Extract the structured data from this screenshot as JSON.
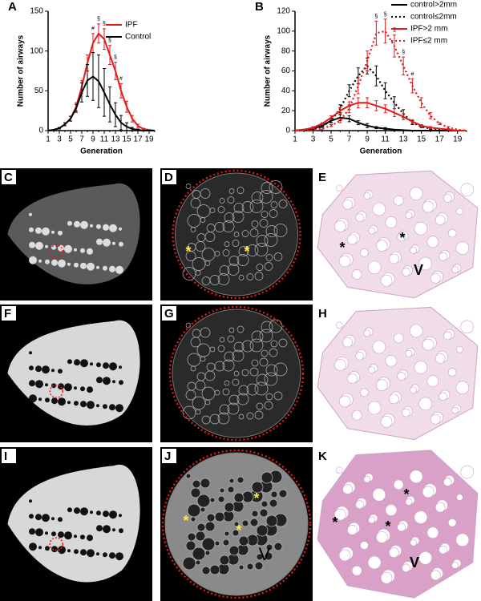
{
  "chart_data": [
    {
      "type": "line",
      "panel": "A",
      "y_label": "Number of airways",
      "x_label": "Generation",
      "xlim": [
        1,
        20
      ],
      "xticks": [
        1,
        3,
        5,
        7,
        9,
        11,
        13,
        15,
        17,
        19
      ],
      "ylim": [
        0,
        150
      ],
      "yticks": [
        0,
        50,
        100,
        150
      ],
      "legend": "upper right",
      "x": [
        1,
        2,
        3,
        4,
        5,
        6,
        7,
        8,
        9,
        10,
        11,
        12,
        13,
        14,
        15,
        16,
        17,
        18,
        19,
        20
      ],
      "series": [
        {
          "name": "IPF",
          "color": "#e31a1c",
          "style": "solid",
          "values": [
            0,
            1,
            3,
            8,
            15,
            30,
            55,
            85,
            110,
            122,
            115,
            95,
            75,
            50,
            30,
            15,
            6,
            2,
            1,
            0
          ],
          "errors": [
            0,
            0,
            1,
            2,
            3,
            5,
            8,
            10,
            12,
            12,
            13,
            12,
            11,
            9,
            7,
            4,
            2,
            1,
            0,
            0
          ]
        },
        {
          "name": "Control",
          "color": "#000000",
          "style": "solid",
          "values": [
            0,
            1,
            3,
            8,
            15,
            28,
            48,
            63,
            68,
            62,
            48,
            33,
            20,
            10,
            5,
            2,
            1,
            0,
            0,
            0
          ],
          "errors": [
            0,
            0,
            1,
            2,
            3,
            5,
            12,
            20,
            30,
            33,
            30,
            22,
            15,
            9,
            5,
            2,
            1,
            0,
            0,
            0
          ]
        }
      ],
      "annotations": [
        {
          "label": "§",
          "x": 10
        },
        {
          "label": "§",
          "x": 11
        },
        {
          "label": "#",
          "x": 9
        },
        {
          "label": "§",
          "x": 12
        },
        {
          "label": "§",
          "x": 13
        },
        {
          "label": "#",
          "x": 14
        }
      ]
    },
    {
      "type": "line",
      "panel": "B",
      "y_label": "Number of airways",
      "x_label": "Generation",
      "xlim": [
        1,
        20
      ],
      "xticks": [
        1,
        3,
        5,
        7,
        9,
        11,
        13,
        15,
        17,
        19
      ],
      "ylim": [
        0,
        120
      ],
      "yticks": [
        0,
        20,
        40,
        60,
        80,
        100,
        120
      ],
      "legend": "upper right",
      "x": [
        1,
        2,
        3,
        4,
        5,
        6,
        7,
        8,
        9,
        10,
        11,
        12,
        13,
        14,
        15,
        16,
        17,
        18,
        19,
        20
      ],
      "series": [
        {
          "name": "control>2mm",
          "color": "#000000",
          "style": "solid",
          "values": [
            0,
            1,
            2,
            5,
            10,
            13,
            12,
            8,
            5,
            3,
            2,
            1,
            0.5,
            0,
            0,
            0,
            0,
            0,
            0,
            0
          ],
          "errors": [
            0,
            0,
            1,
            1,
            2,
            3,
            3,
            2,
            2,
            1,
            1,
            0,
            0,
            0,
            0,
            0,
            0,
            0,
            0,
            0
          ]
        },
        {
          "name": "control≤2mm",
          "color": "#000000",
          "style": "dotted",
          "values": [
            0,
            0,
            1,
            4,
            10,
            22,
            40,
            55,
            65,
            55,
            40,
            28,
            17,
            8,
            4,
            2,
            1,
            0,
            0,
            0
          ],
          "errors": [
            0,
            0,
            0,
            1,
            2,
            4,
            6,
            8,
            8,
            10,
            8,
            6,
            4,
            2,
            1,
            1,
            0,
            0,
            0,
            0
          ]
        },
        {
          "name": "IPF>2 mm",
          "color": "#e31a1c",
          "style": "solid",
          "values": [
            0,
            1,
            3,
            7,
            13,
            20,
            25,
            28,
            28,
            25,
            22,
            18,
            14,
            9,
            5,
            3,
            2,
            1,
            0,
            0
          ],
          "errors": [
            0,
            0,
            1,
            1,
            2,
            3,
            4,
            5,
            5,
            5,
            4,
            4,
            3,
            2,
            1,
            1,
            0,
            0,
            0,
            0
          ]
        },
        {
          "name": "IPF≤2 mm",
          "color": "#e31a1c",
          "style": "dotted",
          "values": [
            0,
            0,
            0,
            2,
            5,
            10,
            22,
            45,
            70,
            98,
            100,
            85,
            65,
            45,
            28,
            15,
            7,
            3,
            1,
            0
          ],
          "errors": [
            0,
            0,
            0,
            1,
            1,
            2,
            4,
            8,
            10,
            12,
            12,
            11,
            9,
            7,
            5,
            3,
            1,
            1,
            0,
            0
          ]
        }
      ],
      "annotations": [
        {
          "label": "§",
          "x": 10
        },
        {
          "label": "§",
          "x": 11
        },
        {
          "label": "§",
          "x": 12
        },
        {
          "label": "§",
          "x": 13
        },
        {
          "label": "#",
          "x": 14
        }
      ]
    }
  ],
  "panels": [
    {
      "label": "C"
    },
    {
      "label": "D",
      "marks": [
        "*",
        "*"
      ]
    },
    {
      "label": "E",
      "marks": [
        "*",
        "*",
        "V"
      ]
    },
    {
      "label": "F"
    },
    {
      "label": "G"
    },
    {
      "label": "H"
    },
    {
      "label": "I"
    },
    {
      "label": "J",
      "marks": [
        "*",
        "*",
        "*",
        "V"
      ]
    },
    {
      "label": "K",
      "marks": [
        "*",
        "*",
        "*",
        "V"
      ]
    }
  ]
}
